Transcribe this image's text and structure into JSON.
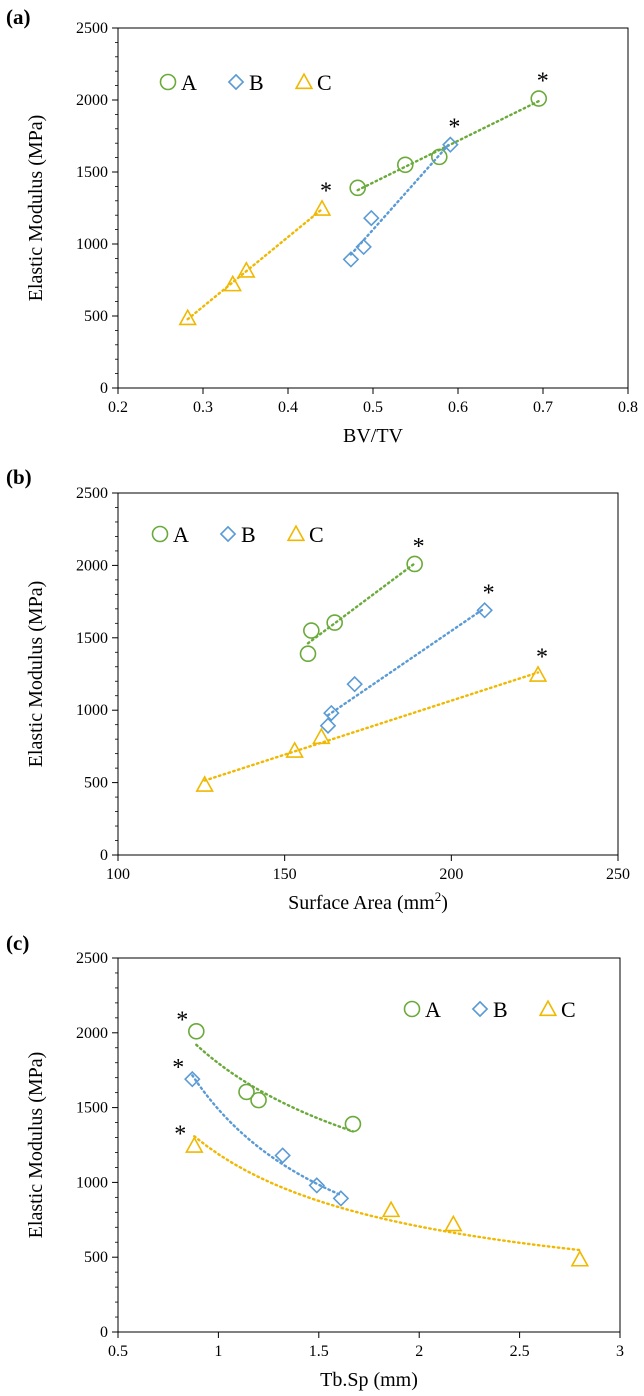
{
  "figure": {
    "colors": {
      "A": "#6aaa3a",
      "B": "#5b9bd5",
      "C": "#f0b800"
    }
  },
  "chart_data": [
    {
      "type": "scatter",
      "panel_label": "(a)",
      "xlabel": "BV/TV",
      "ylabel": "Elastic Modulus (MPa)",
      "xlim": [
        0.2,
        0.8
      ],
      "ylim": [
        0,
        2500
      ],
      "xticks": [
        "0.2",
        "0.3",
        "0.4",
        "0.5",
        "0.6",
        "0.7",
        "0.8"
      ],
      "yticks": [
        "0",
        "500",
        "1000",
        "1500",
        "2000",
        "2500"
      ],
      "xtick_values": [
        0.2,
        0.3,
        0.4,
        0.5,
        0.6,
        0.7,
        0.8
      ],
      "ytick_values": [
        0,
        500,
        1000,
        1500,
        2000,
        2500
      ],
      "legend_position": "top-left",
      "grid": false,
      "series": [
        {
          "name": "A",
          "marker": "circle",
          "trendline": "linear",
          "points": [
            [
              0.482,
              1390
            ],
            [
              0.538,
              1550
            ],
            [
              0.578,
              1605
            ],
            [
              0.695,
              2010
            ]
          ],
          "starred_point": 3
        },
        {
          "name": "B",
          "marker": "diamond",
          "trendline": "linear",
          "points": [
            [
              0.474,
              893
            ],
            [
              0.489,
              980
            ],
            [
              0.498,
              1180
            ],
            [
              0.591,
              1690
            ]
          ],
          "starred_point": 3
        },
        {
          "name": "C",
          "marker": "triangle",
          "trendline": "linear",
          "points": [
            [
              0.282,
              485
            ],
            [
              0.335,
              720
            ],
            [
              0.351,
              815
            ],
            [
              0.44,
              1245
            ]
          ],
          "starred_point": 3
        }
      ],
      "annotation": "*"
    },
    {
      "type": "scatter",
      "panel_label": "(b)",
      "xlabel": "Surface Area (mm",
      "xlabel_superscript": "2",
      "xlabel_suffix": ")",
      "ylabel": "Elastic Modulus (MPa)",
      "xlim": [
        100,
        250
      ],
      "ylim": [
        0,
        2500
      ],
      "xticks": [
        "100",
        "150",
        "200",
        "250"
      ],
      "yticks": [
        "0",
        "500",
        "1000",
        "1500",
        "2000",
        "2500"
      ],
      "xtick_values": [
        100,
        150,
        200,
        250
      ],
      "ytick_values": [
        0,
        500,
        1000,
        1500,
        2000,
        2500
      ],
      "legend_position": "top-left",
      "grid": false,
      "series": [
        {
          "name": "A",
          "marker": "circle",
          "trendline": "linear",
          "points": [
            [
              157,
              1390
            ],
            [
              158,
              1550
            ],
            [
              165,
              1605
            ],
            [
              189,
              2010
            ]
          ],
          "starred_point": 3
        },
        {
          "name": "B",
          "marker": "diamond",
          "trendline": "linear",
          "points": [
            [
              163,
              893
            ],
            [
              164,
              980
            ],
            [
              171,
              1180
            ],
            [
              210,
              1690
            ]
          ],
          "starred_point": 3
        },
        {
          "name": "C",
          "marker": "triangle",
          "trendline": "linear",
          "points": [
            [
              126,
              485
            ],
            [
              153,
              720
            ],
            [
              161,
              815
            ],
            [
              226,
              1245
            ]
          ],
          "starred_point": 3
        }
      ],
      "annotation": "*"
    },
    {
      "type": "scatter",
      "panel_label": "(c)",
      "xlabel": "Tb.Sp (mm)",
      "ylabel": "Elastic Modulus (MPa)",
      "xlim": [
        0.5,
        3
      ],
      "ylim": [
        0,
        2500
      ],
      "xticks": [
        "0.5",
        "1",
        "1.5",
        "2",
        "2.5",
        "3"
      ],
      "yticks": [
        "0",
        "500",
        "1000",
        "1500",
        "2000",
        "2500"
      ],
      "xtick_values": [
        0.5,
        1,
        1.5,
        2,
        2.5,
        3
      ],
      "ytick_values": [
        0,
        500,
        1000,
        1500,
        2000,
        2500
      ],
      "legend_position": "top-right",
      "grid": false,
      "series": [
        {
          "name": "A",
          "marker": "circle",
          "trendline": "power",
          "points": [
            [
              0.89,
              2010
            ],
            [
              1.14,
              1605
            ],
            [
              1.2,
              1550
            ],
            [
              1.67,
              1390
            ]
          ],
          "starred_point": 0
        },
        {
          "name": "B",
          "marker": "diamond",
          "trendline": "power",
          "points": [
            [
              0.87,
              1690
            ],
            [
              1.32,
              1180
            ],
            [
              1.49,
              980
            ],
            [
              1.61,
              893
            ]
          ],
          "starred_point": 0
        },
        {
          "name": "C",
          "marker": "triangle",
          "trendline": "power",
          "points": [
            [
              0.88,
              1245
            ],
            [
              1.86,
              815
            ],
            [
              2.17,
              720
            ],
            [
              2.8,
              485
            ]
          ],
          "starred_point": 0
        }
      ],
      "annotation": "*"
    }
  ]
}
